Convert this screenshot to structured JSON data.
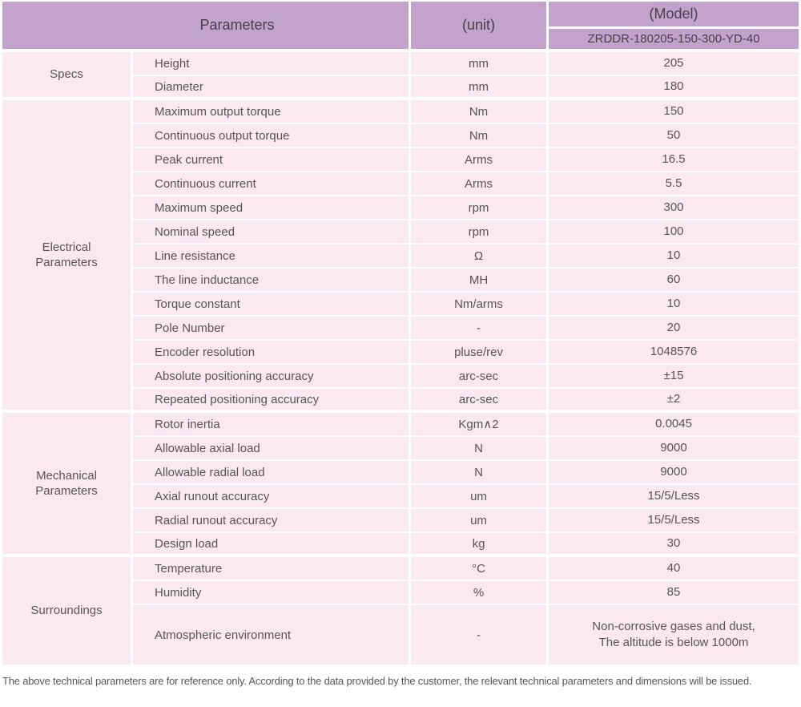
{
  "header": {
    "parameters_label": "Parameters",
    "unit_label": "(unit)",
    "model_label": "(Model)",
    "model_value": "ZRDDR-180205-150-300-YD-40"
  },
  "sections": [
    {
      "group": "Specs",
      "rows": [
        {
          "param": "Height",
          "unit": "mm",
          "value": "205"
        },
        {
          "param": "Diameter",
          "unit": "mm",
          "value": "180"
        }
      ]
    },
    {
      "group": "Electrical\nParameters",
      "rows": [
        {
          "param": "Maximum output torque",
          "unit": "Nm",
          "value": "150"
        },
        {
          "param": "Continuous output torque",
          "unit": "Nm",
          "value": "50"
        },
        {
          "param": "Peak current",
          "unit": "Arms",
          "value": "16.5"
        },
        {
          "param": "Continuous current",
          "unit": "Arms",
          "value": "5.5"
        },
        {
          "param": "Maximum speed",
          "unit": "rpm",
          "value": "300"
        },
        {
          "param": "Nominal speed",
          "unit": "rpm",
          "value": "100"
        },
        {
          "param": "Line resistance",
          "unit": "Ω",
          "value": "10"
        },
        {
          "param": "The line inductance",
          "unit": "MH",
          "value": "60"
        },
        {
          "param": "Torque constant",
          "unit": "Nm/arms",
          "value": "10"
        },
        {
          "param": "Pole Number",
          "unit": "-",
          "value": "20"
        },
        {
          "param": "Encoder resolution",
          "unit": "pluse/rev",
          "value": "1048576"
        },
        {
          "param": "Absolute positioning accuracy",
          "unit": "arc-sec",
          "value": "±15"
        },
        {
          "param": "Repeated positioning accuracy",
          "unit": "arc-sec",
          "value": "±2"
        }
      ]
    },
    {
      "group": "Mechanical\nParameters",
      "rows": [
        {
          "param": "Rotor inertia",
          "unit": "Kgm∧2",
          "value": "0.0045"
        },
        {
          "param": "Allowable axial load",
          "unit": "N",
          "value": "9000"
        },
        {
          "param": "Allowable radial load",
          "unit": "N",
          "value": "9000"
        },
        {
          "param": "Axial runout accuracy",
          "unit": "um",
          "value": "15/5/Less"
        },
        {
          "param": "Radial runout accuracy",
          "unit": "um",
          "value": "15/5/Less"
        },
        {
          "param": "Design load",
          "unit": "kg",
          "value": "30"
        }
      ]
    },
    {
      "group": "Surroundings",
      "rows": [
        {
          "param": "Temperature",
          "unit": "°C",
          "value": "40"
        },
        {
          "param": "Humidity",
          "unit": "%",
          "value": "85"
        },
        {
          "param": "Atmospheric environment",
          "unit": "-",
          "value": "Non-corrosive gases and dust,\nThe altitude is below 1000m",
          "tall": true
        }
      ]
    }
  ],
  "footer": {
    "note": "The above technical parameters are for reference only. According to the data provided by the customer, the relevant technical parameters and dimensions will be issued."
  },
  "colors": {
    "header_bg": "#c2a3cc",
    "row_bg": "#fae9f1",
    "grid": "#ffffff",
    "header_text": "#474144",
    "body_text": "#5a5356"
  }
}
